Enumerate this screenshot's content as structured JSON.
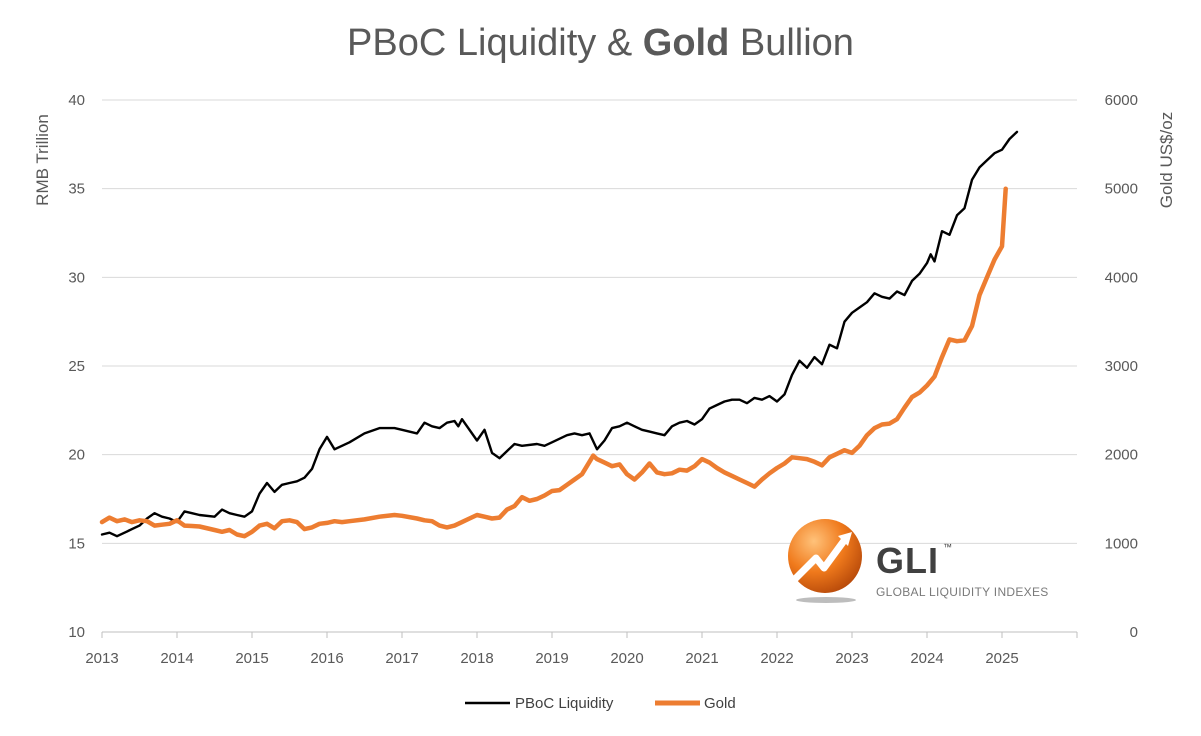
{
  "title": {
    "part1": "PBoC Liquidity & ",
    "bold": "Gold",
    "part2": " Bullion"
  },
  "branding": {
    "logo_text": "GLI",
    "trademark": "™",
    "tagline": "GLOBAL LIQUIDITY INDEXES"
  },
  "colors": {
    "pboc": "#000000",
    "gold": "#ED7D31",
    "grid": "#D9D9D9",
    "text": "#595959"
  },
  "chart_data": {
    "type": "line",
    "title": "PBoC Liquidity & Gold Bullion",
    "xlabel": "",
    "ylabel": "RMB Trillion",
    "y2label": "Gold US$/oz",
    "xlim": [
      2013,
      2026
    ],
    "ylim": [
      10,
      40
    ],
    "y2lim": [
      0,
      6000
    ],
    "x_ticks": [
      "2013",
      "2014",
      "2015",
      "2016",
      "2017",
      "2018",
      "2019",
      "2020",
      "2021",
      "2022",
      "2023",
      "2024",
      "2025"
    ],
    "y_ticks": [
      "10",
      "15",
      "20",
      "25",
      "30",
      "35",
      "40"
    ],
    "y2_ticks": [
      "0",
      "1000",
      "2000",
      "3000",
      "4000",
      "5000",
      "6000"
    ],
    "grid": true,
    "legend_position": "bottom",
    "series": [
      {
        "name": "PBoC Liquidity",
        "axis": "left",
        "color": "#000000",
        "x": [
          2013.0,
          2013.1,
          2013.2,
          2013.3,
          2013.4,
          2013.5,
          2013.6,
          2013.7,
          2013.8,
          2013.9,
          2014.0,
          2014.1,
          2014.2,
          2014.3,
          2014.5,
          2014.6,
          2014.7,
          2014.8,
          2014.9,
          2015.0,
          2015.1,
          2015.2,
          2015.3,
          2015.4,
          2015.5,
          2015.6,
          2015.7,
          2015.8,
          2015.9,
          2016.0,
          2016.1,
          2016.2,
          2016.3,
          2016.5,
          2016.7,
          2016.9,
          2017.0,
          2017.2,
          2017.3,
          2017.4,
          2017.5,
          2017.6,
          2017.7,
          2017.75,
          2017.8,
          2018.0,
          2018.1,
          2018.2,
          2018.3,
          2018.5,
          2018.6,
          2018.8,
          2018.9,
          2019.0,
          2019.2,
          2019.3,
          2019.4,
          2019.5,
          2019.6,
          2019.7,
          2019.8,
          2019.9,
          2020.0,
          2020.1,
          2020.2,
          2020.3,
          2020.4,
          2020.5,
          2020.6,
          2020.7,
          2020.8,
          2020.9,
          2021.0,
          2021.1,
          2021.2,
          2021.3,
          2021.4,
          2021.5,
          2021.6,
          2021.7,
          2021.8,
          2021.9,
          2022.0,
          2022.1,
          2022.2,
          2022.3,
          2022.4,
          2022.5,
          2022.6,
          2022.7,
          2022.8,
          2022.9,
          2023.0,
          2023.1,
          2023.2,
          2023.3,
          2023.4,
          2023.5,
          2023.6,
          2023.7,
          2023.8,
          2023.9,
          2024.0,
          2024.05,
          2024.1,
          2024.2,
          2024.3,
          2024.4,
          2024.5,
          2024.6,
          2024.7,
          2024.8,
          2024.9,
          2025.0,
          2025.1,
          2025.2
        ],
        "values": [
          15.5,
          15.6,
          15.4,
          15.6,
          15.8,
          16.0,
          16.4,
          16.7,
          16.5,
          16.4,
          16.2,
          16.8,
          16.7,
          16.6,
          16.5,
          16.9,
          16.7,
          16.6,
          16.5,
          16.8,
          17.8,
          18.4,
          17.9,
          18.3,
          18.4,
          18.5,
          18.7,
          19.2,
          20.3,
          21.0,
          20.3,
          20.5,
          20.7,
          21.2,
          21.5,
          21.5,
          21.4,
          21.2,
          21.8,
          21.6,
          21.5,
          21.8,
          21.9,
          21.6,
          22.0,
          20.8,
          21.4,
          20.1,
          19.8,
          20.6,
          20.5,
          20.6,
          20.5,
          20.7,
          21.1,
          21.2,
          21.1,
          21.2,
          20.3,
          20.8,
          21.5,
          21.6,
          21.8,
          21.6,
          21.4,
          21.3,
          21.2,
          21.1,
          21.6,
          21.8,
          21.9,
          21.7,
          22.0,
          22.6,
          22.8,
          23.0,
          23.1,
          23.1,
          22.9,
          23.2,
          23.1,
          23.3,
          23.0,
          23.4,
          24.5,
          25.3,
          24.9,
          25.5,
          25.1,
          26.2,
          26.0,
          27.5,
          28.0,
          28.3,
          28.6,
          29.1,
          28.9,
          28.8,
          29.2,
          29.0,
          29.8,
          30.2,
          30.8,
          31.3,
          30.9,
          32.6,
          32.4,
          33.5,
          33.9,
          35.5,
          36.2,
          36.6,
          37.0,
          37.2,
          37.8,
          38.2
        ]
      },
      {
        "name": "Gold",
        "axis": "right",
        "color": "#ED7D31",
        "x": [
          2013.0,
          2013.1,
          2013.2,
          2013.3,
          2013.4,
          2013.5,
          2013.6,
          2013.7,
          2013.8,
          2013.9,
          2014.0,
          2014.1,
          2014.2,
          2014.3,
          2014.5,
          2014.6,
          2014.7,
          2014.8,
          2014.9,
          2015.0,
          2015.1,
          2015.2,
          2015.3,
          2015.4,
          2015.5,
          2015.6,
          2015.7,
          2015.8,
          2015.9,
          2016.0,
          2016.1,
          2016.2,
          2016.3,
          2016.5,
          2016.7,
          2016.9,
          2017.0,
          2017.2,
          2017.3,
          2017.4,
          2017.5,
          2017.6,
          2017.7,
          2017.8,
          2017.9,
          2018.0,
          2018.1,
          2018.2,
          2018.3,
          2018.4,
          2018.5,
          2018.6,
          2018.7,
          2018.8,
          2018.9,
          2019.0,
          2019.1,
          2019.2,
          2019.3,
          2019.4,
          2019.5,
          2019.55,
          2019.6,
          2019.7,
          2019.8,
          2019.9,
          2020.0,
          2020.1,
          2020.2,
          2020.3,
          2020.4,
          2020.5,
          2020.6,
          2020.7,
          2020.8,
          2020.9,
          2021.0,
          2021.1,
          2021.2,
          2021.3,
          2021.4,
          2021.5,
          2021.6,
          2021.7,
          2021.8,
          2021.9,
          2022.0,
          2022.1,
          2022.2,
          2022.3,
          2022.4,
          2022.5,
          2022.6,
          2022.7,
          2022.8,
          2022.9,
          2023.0,
          2023.1,
          2023.2,
          2023.3,
          2023.4,
          2023.5,
          2023.6,
          2023.7,
          2023.8,
          2023.9,
          2024.0,
          2024.1,
          2024.2,
          2024.3,
          2024.4,
          2024.5,
          2024.6,
          2024.7,
          2024.8,
          2024.9,
          2025.0,
          2025.05
        ],
        "values": [
          1240,
          1290,
          1250,
          1270,
          1240,
          1260,
          1250,
          1200,
          1210,
          1220,
          1260,
          1200,
          1195,
          1190,
          1150,
          1130,
          1150,
          1100,
          1080,
          1130,
          1200,
          1220,
          1170,
          1250,
          1260,
          1240,
          1160,
          1180,
          1220,
          1230,
          1250,
          1240,
          1250,
          1270,
          1300,
          1320,
          1310,
          1280,
          1260,
          1250,
          1200,
          1180,
          1200,
          1240,
          1280,
          1320,
          1300,
          1280,
          1290,
          1380,
          1420,
          1520,
          1480,
          1500,
          1540,
          1590,
          1600,
          1660,
          1720,
          1780,
          1920,
          1990,
          1950,
          1910,
          1870,
          1890,
          1780,
          1720,
          1800,
          1900,
          1800,
          1780,
          1790,
          1830,
          1820,
          1870,
          1950,
          1910,
          1850,
          1800,
          1760,
          1720,
          1680,
          1640,
          1720,
          1790,
          1850,
          1900,
          1970,
          1960,
          1950,
          1920,
          1880,
          1970,
          2010,
          2050,
          2020,
          2100,
          2220,
          2300,
          2340,
          2350,
          2400,
          2530,
          2650,
          2700,
          2780,
          2880,
          3100,
          3300,
          3280,
          3290,
          3450,
          3800,
          4000,
          4200,
          4350,
          5000
        ]
      }
    ]
  }
}
